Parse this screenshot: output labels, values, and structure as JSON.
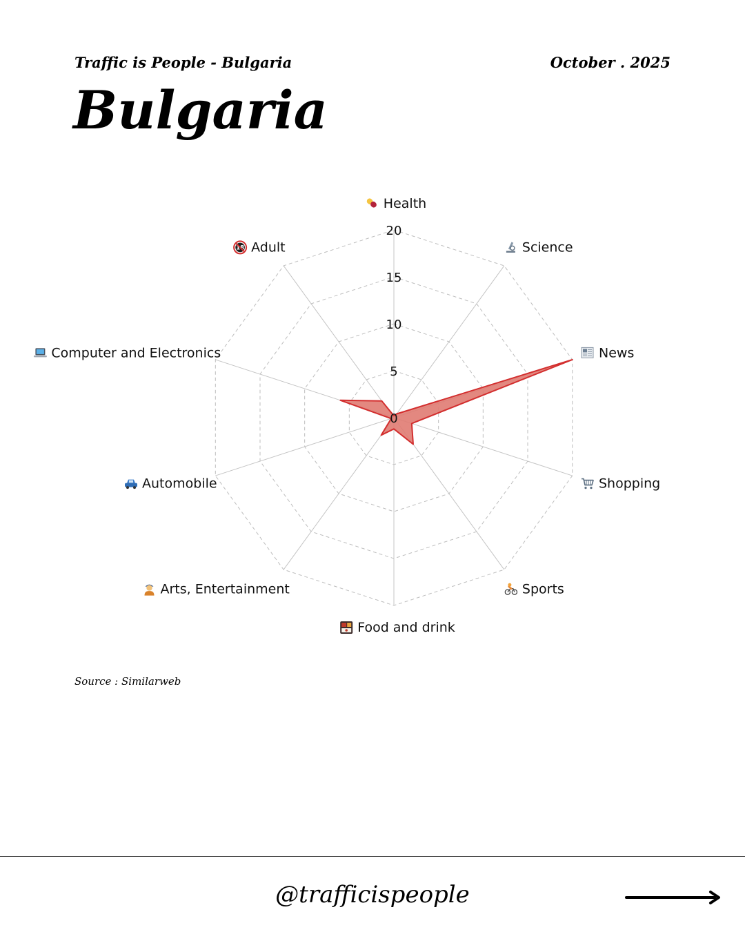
{
  "header": {
    "series_title": "Traffic is People - Bulgaria",
    "date": "October . 2025",
    "title": "Bulgaria"
  },
  "chart_data": {
    "type": "radar",
    "axes": [
      "Health",
      "Science",
      "News",
      "Shopping",
      "Sports",
      "Food and drink",
      "Arts, Entertainment",
      "Automobile",
      "Computer and Electronics",
      "Adult"
    ],
    "axis_icons": [
      "pill-icon",
      "microscope-icon",
      "newspaper-icon",
      "shopping-cart-icon",
      "cyclist-icon",
      "bento-box-icon",
      "artist-icon",
      "car-icon",
      "laptop-icon",
      "no-under-18-icon"
    ],
    "values": [
      0.2,
      0.5,
      20,
      2.0,
      3.5,
      1.2,
      2.3,
      0.3,
      6.0,
      2.2
    ],
    "rlim": [
      0,
      20
    ],
    "ticks": [
      0,
      5,
      10,
      15,
      20
    ],
    "grid": true,
    "fill_color": "#E07B72",
    "line_color": "#D32F2F"
  },
  "footer": {
    "source": "Source : Similarweb",
    "handle": "@trafficispeople"
  },
  "icons": {
    "next": "arrow-right-icon"
  }
}
